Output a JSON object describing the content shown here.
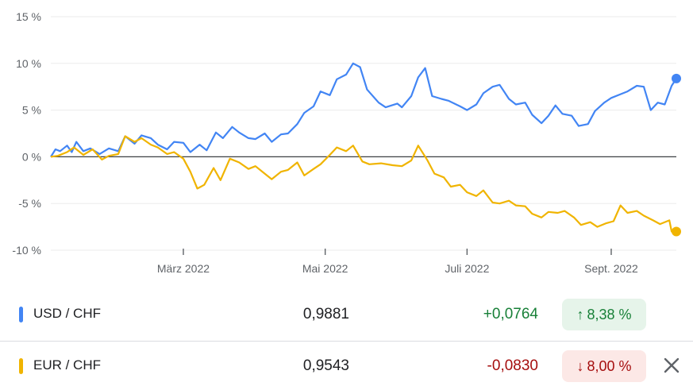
{
  "chart_data": {
    "type": "line",
    "y_ticks": [
      "15 %",
      "10 %",
      "5 %",
      "0 %",
      "-5 %",
      "-10 %"
    ],
    "y_tick_values": [
      15,
      10,
      5,
      0,
      -5,
      -10
    ],
    "ylim": [
      -10,
      15
    ],
    "x_tick_labels": [
      "März 2022",
      "Mai 2022",
      "Juli 2022",
      "Sept. 2022"
    ],
    "x_tick_dates": [
      "2022-03-01",
      "2022-05-01",
      "2022-07-01",
      "2022-09-01"
    ],
    "xlim": [
      "2022-01-03",
      "2022-09-29"
    ],
    "series": [
      {
        "name": "USD / CHF",
        "color": "#4285f4",
        "points": [
          [
            "2022-01-03",
            0
          ],
          [
            "2022-01-05",
            0.8
          ],
          [
            "2022-01-07",
            0.6
          ],
          [
            "2022-01-10",
            1.2
          ],
          [
            "2022-01-12",
            0.5
          ],
          [
            "2022-01-14",
            1.6
          ],
          [
            "2022-01-17",
            0.6
          ],
          [
            "2022-01-20",
            0.9
          ],
          [
            "2022-01-24",
            0.3
          ],
          [
            "2022-01-28",
            0.9
          ],
          [
            "2022-02-01",
            0.6
          ],
          [
            "2022-02-04",
            2.2
          ],
          [
            "2022-02-08",
            1.4
          ],
          [
            "2022-02-11",
            2.3
          ],
          [
            "2022-02-15",
            2.0
          ],
          [
            "2022-02-18",
            1.3
          ],
          [
            "2022-02-22",
            0.8
          ],
          [
            "2022-02-25",
            1.6
          ],
          [
            "2022-03-01",
            1.5
          ],
          [
            "2022-03-04",
            0.5
          ],
          [
            "2022-03-08",
            1.3
          ],
          [
            "2022-03-11",
            0.7
          ],
          [
            "2022-03-15",
            2.6
          ],
          [
            "2022-03-18",
            2.0
          ],
          [
            "2022-03-22",
            3.2
          ],
          [
            "2022-03-25",
            2.6
          ],
          [
            "2022-03-29",
            2.0
          ],
          [
            "2022-04-01",
            1.9
          ],
          [
            "2022-04-05",
            2.5
          ],
          [
            "2022-04-08",
            1.6
          ],
          [
            "2022-04-12",
            2.4
          ],
          [
            "2022-04-15",
            2.5
          ],
          [
            "2022-04-19",
            3.5
          ],
          [
            "2022-04-22",
            4.7
          ],
          [
            "2022-04-26",
            5.4
          ],
          [
            "2022-04-29",
            7.0
          ],
          [
            "2022-05-03",
            6.6
          ],
          [
            "2022-05-06",
            8.3
          ],
          [
            "2022-05-10",
            8.8
          ],
          [
            "2022-05-13",
            10.0
          ],
          [
            "2022-05-16",
            9.6
          ],
          [
            "2022-05-19",
            7.2
          ],
          [
            "2022-05-24",
            5.8
          ],
          [
            "2022-05-27",
            5.3
          ],
          [
            "2022-06-01",
            5.7
          ],
          [
            "2022-06-03",
            5.3
          ],
          [
            "2022-06-07",
            6.5
          ],
          [
            "2022-06-10",
            8.5
          ],
          [
            "2022-06-13",
            9.5
          ],
          [
            "2022-06-16",
            6.5
          ],
          [
            "2022-06-20",
            6.2
          ],
          [
            "2022-06-23",
            6.0
          ],
          [
            "2022-06-28",
            5.4
          ],
          [
            "2022-07-01",
            5.0
          ],
          [
            "2022-07-05",
            5.6
          ],
          [
            "2022-07-08",
            6.8
          ],
          [
            "2022-07-12",
            7.5
          ],
          [
            "2022-07-15",
            7.7
          ],
          [
            "2022-07-19",
            6.2
          ],
          [
            "2022-07-22",
            5.6
          ],
          [
            "2022-07-26",
            5.8
          ],
          [
            "2022-07-29",
            4.5
          ],
          [
            "2022-08-02",
            3.6
          ],
          [
            "2022-08-05",
            4.4
          ],
          [
            "2022-08-08",
            5.5
          ],
          [
            "2022-08-11",
            4.6
          ],
          [
            "2022-08-15",
            4.4
          ],
          [
            "2022-08-18",
            3.3
          ],
          [
            "2022-08-22",
            3.5
          ],
          [
            "2022-08-25",
            4.9
          ],
          [
            "2022-08-29",
            5.8
          ],
          [
            "2022-09-01",
            6.3
          ],
          [
            "2022-09-05",
            6.7
          ],
          [
            "2022-09-08",
            7.0
          ],
          [
            "2022-09-12",
            7.6
          ],
          [
            "2022-09-15",
            7.5
          ],
          [
            "2022-09-18",
            5.0
          ],
          [
            "2022-09-21",
            5.8
          ],
          [
            "2022-09-24",
            5.6
          ],
          [
            "2022-09-27",
            7.6
          ],
          [
            "2022-09-29",
            8.38
          ]
        ]
      },
      {
        "name": "EUR / CHF",
        "color": "#f0b400",
        "points": [
          [
            "2022-01-03",
            0
          ],
          [
            "2022-01-06",
            0.1
          ],
          [
            "2022-01-10",
            0.5
          ],
          [
            "2022-01-13",
            1.0
          ],
          [
            "2022-01-17",
            0.2
          ],
          [
            "2022-01-21",
            0.8
          ],
          [
            "2022-01-25",
            -0.3
          ],
          [
            "2022-01-28",
            0.1
          ],
          [
            "2022-02-01",
            0.3
          ],
          [
            "2022-02-04",
            2.2
          ],
          [
            "2022-02-08",
            1.6
          ],
          [
            "2022-02-11",
            2.0
          ],
          [
            "2022-02-15",
            1.3
          ],
          [
            "2022-02-18",
            1.0
          ],
          [
            "2022-02-22",
            0.3
          ],
          [
            "2022-02-25",
            0.5
          ],
          [
            "2022-03-01",
            -0.2
          ],
          [
            "2022-03-04",
            -1.6
          ],
          [
            "2022-03-07",
            -3.4
          ],
          [
            "2022-03-10",
            -3.0
          ],
          [
            "2022-03-14",
            -1.2
          ],
          [
            "2022-03-17",
            -2.5
          ],
          [
            "2022-03-21",
            -0.2
          ],
          [
            "2022-03-25",
            -0.6
          ],
          [
            "2022-03-29",
            -1.3
          ],
          [
            "2022-04-01",
            -1.0
          ],
          [
            "2022-04-05",
            -1.8
          ],
          [
            "2022-04-08",
            -2.4
          ],
          [
            "2022-04-12",
            -1.6
          ],
          [
            "2022-04-15",
            -1.4
          ],
          [
            "2022-04-19",
            -0.6
          ],
          [
            "2022-04-22",
            -2.0
          ],
          [
            "2022-04-26",
            -1.3
          ],
          [
            "2022-04-29",
            -0.8
          ],
          [
            "2022-05-03",
            0.2
          ],
          [
            "2022-05-06",
            1.0
          ],
          [
            "2022-05-10",
            0.6
          ],
          [
            "2022-05-13",
            1.2
          ],
          [
            "2022-05-17",
            -0.5
          ],
          [
            "2022-05-20",
            -0.8
          ],
          [
            "2022-05-25",
            -0.7
          ],
          [
            "2022-05-30",
            -0.9
          ],
          [
            "2022-06-03",
            -1.0
          ],
          [
            "2022-06-07",
            -0.4
          ],
          [
            "2022-06-10",
            1.2
          ],
          [
            "2022-06-14",
            -0.4
          ],
          [
            "2022-06-17",
            -1.8
          ],
          [
            "2022-06-21",
            -2.2
          ],
          [
            "2022-06-24",
            -3.2
          ],
          [
            "2022-06-28",
            -3.0
          ],
          [
            "2022-07-01",
            -3.8
          ],
          [
            "2022-07-05",
            -4.2
          ],
          [
            "2022-07-08",
            -3.6
          ],
          [
            "2022-07-12",
            -4.9
          ],
          [
            "2022-07-15",
            -5.0
          ],
          [
            "2022-07-19",
            -4.7
          ],
          [
            "2022-07-22",
            -5.2
          ],
          [
            "2022-07-26",
            -5.3
          ],
          [
            "2022-07-29",
            -6.1
          ],
          [
            "2022-08-02",
            -6.5
          ],
          [
            "2022-08-05",
            -5.9
          ],
          [
            "2022-08-09",
            -6.0
          ],
          [
            "2022-08-12",
            -5.8
          ],
          [
            "2022-08-16",
            -6.5
          ],
          [
            "2022-08-19",
            -7.3
          ],
          [
            "2022-08-23",
            -7.0
          ],
          [
            "2022-08-26",
            -7.5
          ],
          [
            "2022-08-30",
            -7.1
          ],
          [
            "2022-09-02",
            -6.9
          ],
          [
            "2022-09-05",
            -5.2
          ],
          [
            "2022-09-08",
            -6.0
          ],
          [
            "2022-09-12",
            -5.8
          ],
          [
            "2022-09-15",
            -6.3
          ],
          [
            "2022-09-19",
            -6.8
          ],
          [
            "2022-09-22",
            -7.2
          ],
          [
            "2022-09-26",
            -6.8
          ],
          [
            "2022-09-27",
            -8.0
          ],
          [
            "2022-09-28",
            -7.8
          ],
          [
            "2022-09-29",
            -8.0
          ]
        ]
      }
    ]
  },
  "rows": [
    {
      "name": "USD / CHF",
      "price": "0,9881",
      "change": "+0,0764",
      "percent": "8,38 %",
      "arrow": "↑",
      "color": "#4285f4",
      "change_color": "#188038",
      "badge_bg": "#e6f4ea"
    },
    {
      "name": "EUR / CHF",
      "price": "0,9543",
      "change": "-0,0830",
      "percent": "8,00 %",
      "arrow": "↓",
      "color": "#f0b400",
      "change_color": "#a50e0e",
      "badge_bg": "#fce8e6"
    }
  ],
  "icons": {
    "close": "close-icon"
  }
}
